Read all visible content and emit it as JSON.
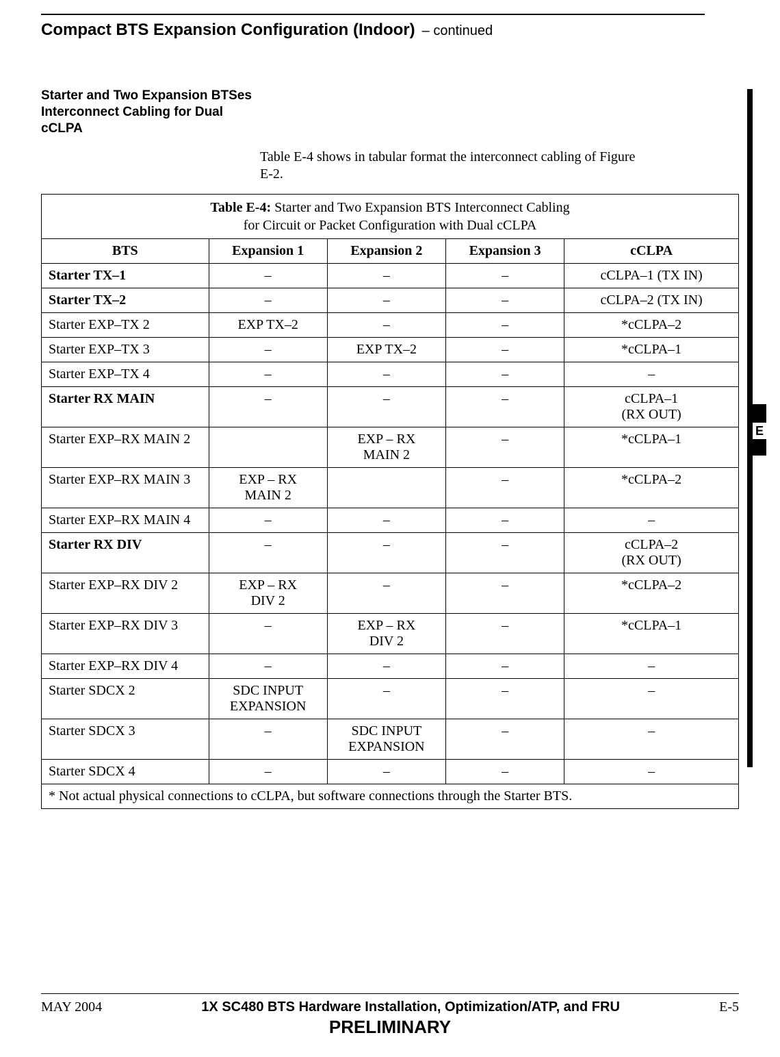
{
  "header": {
    "title": "Compact BTS Expansion Configuration (Indoor)",
    "continued": " – continued"
  },
  "section": {
    "title": "Starter and Two Expansion BTSes Interconnect Cabling for Dual cCLPA",
    "intro": "Table E-4 shows in tabular format the interconnect cabling of Figure E-2."
  },
  "table": {
    "caption_strong": "Table E-4:",
    "caption_rest_line1": " Starter and Two Expansion BTS Interconnect Cabling",
    "caption_line2": "for Circuit or Packet Configuration with Dual cCLPA",
    "columns": [
      "BTS",
      "Expansion 1",
      "Expansion 2",
      "Expansion 3",
      "cCLPA"
    ],
    "rows": [
      {
        "bts": "Starter TX–1",
        "bold": true,
        "e1": "–",
        "e2": "–",
        "e3": "–",
        "c": "cCLPA–1 (TX IN)"
      },
      {
        "bts": "Starter TX–2",
        "bold": true,
        "e1": "–",
        "e2": "–",
        "e3": "–",
        "c": "cCLPA–2 (TX IN)"
      },
      {
        "bts": "Starter EXP–TX 2",
        "bold": false,
        "e1": "EXP TX–2",
        "e2": "–",
        "e3": "–",
        "c": "*cCLPA–2"
      },
      {
        "bts": "Starter EXP–TX 3",
        "bold": false,
        "e1": "–",
        "e2": "EXP TX–2",
        "e3": "–",
        "c": "*cCLPA–1"
      },
      {
        "bts": "Starter EXP–TX 4",
        "bold": false,
        "e1": "–",
        "e2": "–",
        "e3": "–",
        "c": "–"
      },
      {
        "bts": "Starter RX MAIN",
        "bold": true,
        "e1": "–",
        "e2": "–",
        "e3": "–",
        "c": "cCLPA–1\n(RX OUT)"
      },
      {
        "bts": "Starter EXP–RX MAIN 2",
        "bold": false,
        "e1": "",
        "e2": "EXP – RX\nMAIN 2",
        "e3": "–",
        "c": "*cCLPA–1"
      },
      {
        "bts": "Starter EXP–RX MAIN 3",
        "bold": false,
        "e1": "EXP – RX\nMAIN 2",
        "e2": "",
        "e3": "–",
        "c": "*cCLPA–2"
      },
      {
        "bts": "Starter EXP–RX MAIN 4",
        "bold": false,
        "e1": "–",
        "e2": "–",
        "e3": "–",
        "c": "–"
      },
      {
        "bts": "Starter RX DIV",
        "bold": true,
        "e1": "–",
        "e2": "–",
        "e3": "–",
        "c": "cCLPA–2\n(RX OUT)"
      },
      {
        "bts": "Starter EXP–RX DIV 2",
        "bold": false,
        "e1": "EXP – RX\nDIV 2",
        "e2": "–",
        "e3": "–",
        "c": "*cCLPA–2"
      },
      {
        "bts": "Starter EXP–RX DIV 3",
        "bold": false,
        "e1": "–",
        "e2": "EXP – RX\nDIV 2",
        "e3": "–",
        "c": "*cCLPA–1"
      },
      {
        "bts": "Starter EXP–RX DIV 4",
        "bold": false,
        "e1": "–",
        "e2": "–",
        "e3": "–",
        "c": "–"
      },
      {
        "bts": "Starter SDCX 2",
        "bold": false,
        "e1": "SDC INPUT\nEXPANSION",
        "e2": "–",
        "e3": "–",
        "c": "–"
      },
      {
        "bts": "Starter SDCX 3",
        "bold": false,
        "e1": "–",
        "e2": "SDC INPUT\nEXPANSION",
        "e3": "–",
        "c": "–"
      },
      {
        "bts": "Starter SDCX 4",
        "bold": false,
        "e1": "–",
        "e2": "–",
        "e3": "–",
        "c": "–"
      }
    ],
    "footnote": "* Not actual physical connections to cCLPA, but software connections through the Starter BTS.",
    "col_widths": [
      "24%",
      "17%",
      "17%",
      "17%",
      "25%"
    ]
  },
  "side_tab": {
    "letter": "E"
  },
  "footer": {
    "left": "MAY 2004",
    "center": "1X SC480 BTS Hardware Installation, Optimization/ATP, and FRU",
    "right": "E-5",
    "prelim": "PRELIMINARY"
  }
}
